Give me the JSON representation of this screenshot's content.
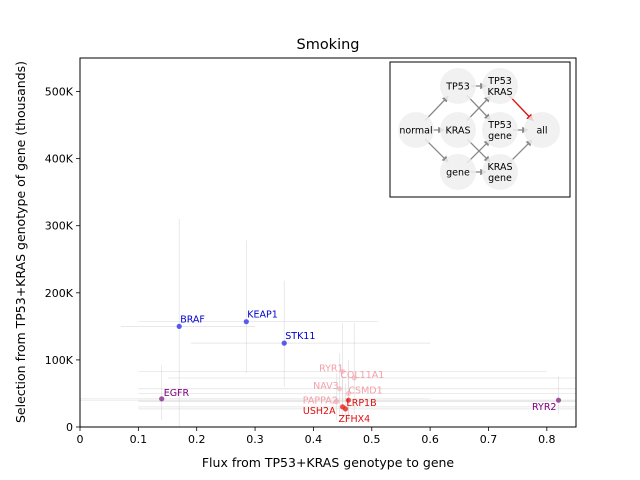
{
  "chart_data": {
    "type": "scatter",
    "title": "Smoking",
    "xlabel": "Flux from TP53+KRAS genotype to gene",
    "ylabel": "Selection from TP53+KRAS genotype of gene (thousands)",
    "xlim": [
      0,
      0.85
    ],
    "ylim": [
      0,
      550000
    ],
    "xticks": [
      {
        "value": 0,
        "label": "0"
      },
      {
        "value": 0.1,
        "label": "0.1"
      },
      {
        "value": 0.2,
        "label": "0.2"
      },
      {
        "value": 0.3,
        "label": "0.3"
      },
      {
        "value": 0.4,
        "label": "0.4"
      },
      {
        "value": 0.5,
        "label": "0.5"
      },
      {
        "value": 0.6,
        "label": "0.6"
      },
      {
        "value": 0.7,
        "label": "0.7"
      },
      {
        "value": 0.8,
        "label": "0.8"
      }
    ],
    "yticks": [
      {
        "value": 0,
        "label": "0"
      },
      {
        "value": 100000,
        "label": "100K"
      },
      {
        "value": 200000,
        "label": "200K"
      },
      {
        "value": 300000,
        "label": "300K"
      },
      {
        "value": 400000,
        "label": "400K"
      },
      {
        "value": 500000,
        "label": "500K"
      }
    ],
    "grid": false,
    "points": [
      {
        "label": "BRAF",
        "x": 0.17,
        "y": 150000,
        "xerr": [
          0.07,
          0.3
        ],
        "yerr": [
          0,
          310000
        ],
        "color": "#3333ee",
        "opacity": 0.8,
        "labelColor": "#0000cc"
      },
      {
        "label": "KEAP1",
        "x": 0.285,
        "y": 157000,
        "xerr": [
          0.1,
          0.51
        ],
        "yerr": [
          80000,
          278000
        ],
        "color": "#3333ee",
        "opacity": 0.8,
        "labelColor": "#0000cc"
      },
      {
        "label": "STK11",
        "x": 0.35,
        "y": 125000,
        "xerr": [
          0.19,
          0.6
        ],
        "yerr": [
          60000,
          218000
        ],
        "color": "#3333ee",
        "opacity": 0.8,
        "labelColor": "#0000cc"
      },
      {
        "label": "EGFR",
        "x": 0.14,
        "y": 42000,
        "xerr": [
          0,
          0.6
        ],
        "yerr": [
          10000,
          92000
        ],
        "color": "#8b2a8b",
        "opacity": 0.8,
        "labelColor": "#800080"
      },
      {
        "label": "RYR2",
        "x": 0.82,
        "y": 40000,
        "xerr": [
          0,
          0.85
        ],
        "yerr": [
          20000,
          75000
        ],
        "color": "#8b2a8b",
        "opacity": 0.8,
        "labelColor": "#800080"
      },
      {
        "label": "RYR1",
        "x": 0.45,
        "y": 83000,
        "xerr": [
          0.1,
          0.8
        ],
        "yerr": [
          30000,
          155000
        ],
        "color": "#ee6677",
        "opacity": 0.3,
        "labelColor": "#f4a0a8"
      },
      {
        "label": "COL11A1",
        "x": 0.47,
        "y": 73000,
        "xerr": [
          0.15,
          0.85
        ],
        "yerr": [
          20000,
          155000
        ],
        "color": "#ee6677",
        "opacity": 0.3,
        "labelColor": "#f4a0a8"
      },
      {
        "label": "NAV3",
        "x": 0.445,
        "y": 57000,
        "xerr": [
          0.1,
          0.85
        ],
        "yerr": [
          15000,
          110000
        ],
        "color": "#ee6677",
        "opacity": 0.3,
        "labelColor": "#f4a0a8"
      },
      {
        "label": "CSMD1",
        "x": 0.46,
        "y": 50000,
        "xerr": [
          0.1,
          0.85
        ],
        "yerr": [
          15000,
          100000
        ],
        "color": "#ee6677",
        "opacity": 0.3,
        "labelColor": "#f4a0a8"
      },
      {
        "label": "PAPPA2",
        "x": 0.44,
        "y": 38000,
        "xerr": [
          0.1,
          0.85
        ],
        "yerr": [
          10000,
          80000
        ],
        "color": "#ee6677",
        "opacity": 0.35,
        "labelColor": "#f4a0a8"
      },
      {
        "label": "LRP1B",
        "x": 0.46,
        "y": 40000,
        "xerr": [
          0.1,
          0.85
        ],
        "yerr": [
          10000,
          80000
        ],
        "color": "#e8201a",
        "opacity": 0.8,
        "labelColor": "#dd1111"
      },
      {
        "label": "USH2A",
        "x": 0.45,
        "y": 30000,
        "xerr": [
          0.1,
          0.85
        ],
        "yerr": [
          5000,
          70000
        ],
        "color": "#e8201a",
        "opacity": 0.8,
        "labelColor": "#dd1111"
      },
      {
        "label": "ZFHX4",
        "x": 0.455,
        "y": 27000,
        "xerr": [
          0.1,
          0.85
        ],
        "yerr": [
          5000,
          65000
        ],
        "color": "#e8201a",
        "opacity": 0.8,
        "labelColor": "#dd1111"
      }
    ],
    "inset": {
      "nodes": [
        {
          "id": "TP53",
          "label": "TP53"
        },
        {
          "id": "TP53KRAS",
          "label": "TP53\nKRAS"
        },
        {
          "id": "normal",
          "label": "normal"
        },
        {
          "id": "KRAS",
          "label": "KRAS"
        },
        {
          "id": "TP53gene",
          "label": "TP53\ngene"
        },
        {
          "id": "all",
          "label": "all"
        },
        {
          "id": "gene",
          "label": "gene"
        },
        {
          "id": "KRASgene",
          "label": "KRAS\ngene"
        }
      ],
      "edges": [
        {
          "from": "normal",
          "to": "TP53",
          "highlight": false
        },
        {
          "from": "normal",
          "to": "KRAS",
          "highlight": false
        },
        {
          "from": "normal",
          "to": "gene",
          "highlight": false
        },
        {
          "from": "TP53",
          "to": "TP53KRAS",
          "highlight": false
        },
        {
          "from": "TP53",
          "to": "TP53gene",
          "highlight": false
        },
        {
          "from": "KRAS",
          "to": "TP53KRAS",
          "highlight": false
        },
        {
          "from": "KRAS",
          "to": "KRASgene",
          "highlight": false
        },
        {
          "from": "gene",
          "to": "TP53gene",
          "highlight": false
        },
        {
          "from": "gene",
          "to": "KRASgene",
          "highlight": false
        },
        {
          "from": "TP53KRAS",
          "to": "all",
          "highlight": true
        },
        {
          "from": "TP53gene",
          "to": "all",
          "highlight": false
        },
        {
          "from": "KRASgene",
          "to": "all",
          "highlight": false
        }
      ]
    }
  }
}
